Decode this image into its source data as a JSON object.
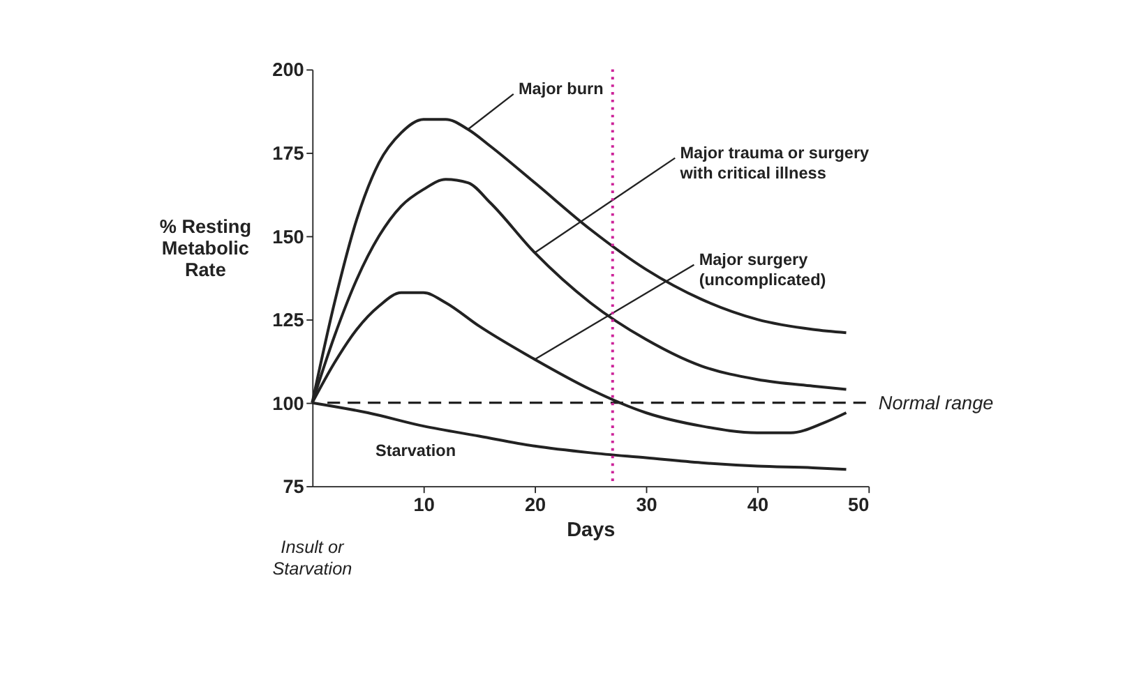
{
  "chart_data": {
    "type": "line",
    "xlabel": "Days",
    "ylabel": "% Resting\nMetabolic\nRate",
    "xlim": [
      0,
      50
    ],
    "xticks": [
      10,
      20,
      30,
      40,
      50
    ],
    "ylim": [
      75,
      200
    ],
    "yticks": [
      75,
      100,
      125,
      150,
      175,
      200
    ],
    "grid": false,
    "legend": false,
    "line_style": "solid",
    "marker": "none",
    "series": [
      {
        "name": "Major burn",
        "color": "#222222",
        "x": [
          0,
          2,
          4,
          6,
          8,
          10,
          12,
          14,
          16,
          20,
          25,
          30,
          35,
          40,
          45,
          48
        ],
        "values": [
          100,
          130,
          155,
          172,
          181,
          185,
          185,
          182,
          177,
          166,
          152,
          140,
          131,
          125,
          122,
          121
        ]
      },
      {
        "name": "Major trauma or surgery\nwith critical illness",
        "color": "#222222",
        "x": [
          0,
          2,
          4,
          6,
          8,
          10,
          12,
          14,
          16,
          20,
          25,
          30,
          35,
          40,
          45,
          48
        ],
        "values": [
          100,
          120,
          137,
          150,
          159,
          164,
          167,
          166,
          160,
          145,
          130,
          119,
          111,
          107,
          105,
          104
        ]
      },
      {
        "name": "Major surgery\n(uncomplicated)",
        "color": "#222222",
        "x": [
          0,
          2,
          4,
          6,
          8,
          10,
          12,
          15,
          20,
          25,
          30,
          35,
          40,
          43,
          46,
          48
        ],
        "values": [
          100,
          112,
          122,
          129,
          133,
          133,
          130,
          123,
          113,
          104,
          97,
          93,
          91,
          91,
          94,
          97
        ]
      },
      {
        "name": "Starvation",
        "color": "#222222",
        "x": [
          0,
          5,
          10,
          15,
          20,
          25,
          30,
          35,
          40,
          45,
          48
        ],
        "values": [
          100,
          97,
          93,
          90,
          87,
          85,
          83.5,
          82,
          81,
          80.5,
          80
        ]
      }
    ],
    "ref_lines": [
      {
        "axis": "y",
        "value": 100,
        "label": "Normal range",
        "line_style": "dashed",
        "color": "#222222"
      },
      {
        "axis": "x",
        "value": 27,
        "label": null,
        "line_style": "dotted",
        "color": "#cc2299"
      }
    ],
    "annotations": [
      "Insult or\nStarvation"
    ]
  }
}
